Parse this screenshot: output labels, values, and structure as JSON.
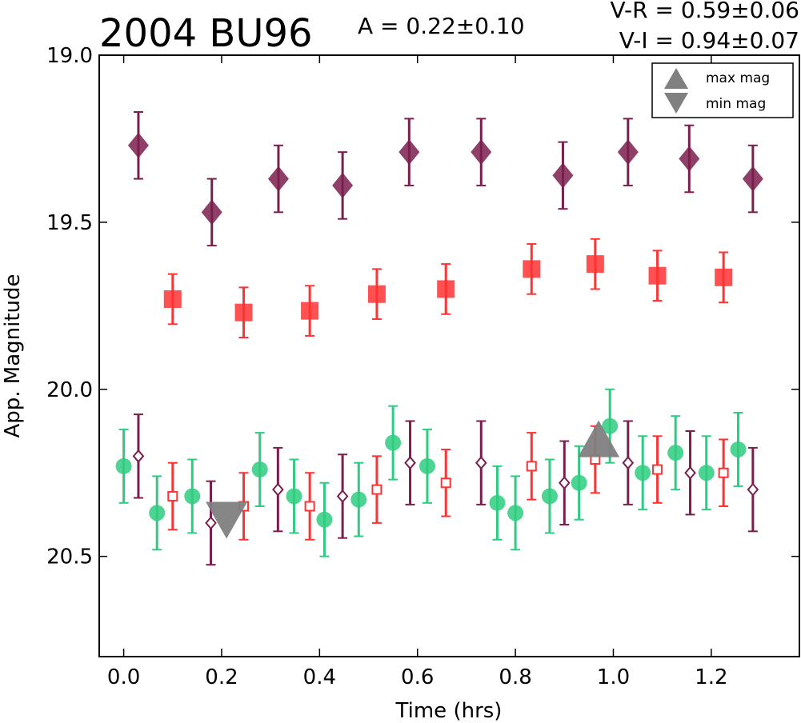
{
  "chart_data": {
    "type": "scatter",
    "title": "2004 BU96",
    "amplitude_text": "A  = 0.22±0.10",
    "color_lines": [
      "V-R = 0.59±0.06",
      "V-I  = 0.94±0.07"
    ],
    "xlabel": "Time (hrs)",
    "ylabel": "App. Magnitude",
    "xlim": [
      -0.05,
      1.38
    ],
    "ylim": [
      20.8,
      19.0
    ],
    "inverted_y": true,
    "x_ticks": [
      "0.0",
      "0.2",
      "0.4",
      "0.6",
      "0.8",
      "1.0",
      "1.2"
    ],
    "x_tick_values": [
      0.0,
      0.2,
      0.4,
      0.6,
      0.8,
      1.0,
      1.2
    ],
    "y_ticks": [
      "19.0",
      "19.5",
      "20.0",
      "20.5"
    ],
    "y_tick_values": [
      19.0,
      19.5,
      20.0,
      20.5
    ],
    "grid": false,
    "legend_position": "top-right",
    "legend": [
      {
        "label": "max mag",
        "marker": "triangle-up",
        "color": "#808080"
      },
      {
        "label": "min mag",
        "marker": "triangle-down",
        "color": "#808080"
      }
    ],
    "series": [
      {
        "marker": "diamond-filled",
        "color": "#7b1e4e",
        "x": [
          0.03,
          0.18,
          0.316,
          0.447,
          0.583,
          0.73,
          0.897,
          1.03,
          1.155,
          1.285
        ],
        "y": [
          19.27,
          19.47,
          19.37,
          19.39,
          19.29,
          19.29,
          19.36,
          19.29,
          19.31,
          19.37
        ],
        "yerr": 0.1
      },
      {
        "marker": "square-filled",
        "color": "#ff3333",
        "x": [
          0.1,
          0.245,
          0.38,
          0.517,
          0.658,
          0.833,
          0.963,
          1.09,
          1.225
        ],
        "y": [
          19.73,
          19.77,
          19.765,
          19.715,
          19.7,
          19.64,
          19.625,
          19.66,
          19.665
        ],
        "yerr": 0.075
      },
      {
        "marker": "circle-filled",
        "color": "#2ecc80",
        "x": [
          0.0,
          0.068,
          0.14,
          0.278,
          0.348,
          0.41,
          0.48,
          0.55,
          0.62,
          0.763,
          0.8,
          0.87,
          0.93,
          0.993,
          1.06,
          1.127,
          1.19,
          1.255
        ],
        "y": [
          20.23,
          20.37,
          20.32,
          20.24,
          20.32,
          20.39,
          20.33,
          20.16,
          20.23,
          20.34,
          20.37,
          20.32,
          20.28,
          20.11,
          20.25,
          20.19,
          20.25,
          20.18
        ],
        "yerr": 0.11
      },
      {
        "marker": "diamond-open",
        "color": "#7b1e4e",
        "x": [
          0.03,
          0.178,
          0.315,
          0.447,
          0.585,
          0.73,
          0.9,
          1.03,
          1.157,
          1.285
        ],
        "y": [
          20.2,
          20.4,
          20.3,
          20.32,
          20.22,
          20.22,
          20.28,
          20.22,
          20.25,
          20.3
        ],
        "yerr": 0.125
      },
      {
        "marker": "square-open",
        "color": "#ff3333",
        "x": [
          0.1,
          0.245,
          0.38,
          0.517,
          0.658,
          0.833,
          0.963,
          1.09,
          1.225
        ],
        "y": [
          20.32,
          20.35,
          20.35,
          20.3,
          20.28,
          20.23,
          20.21,
          20.24,
          20.25
        ],
        "yerr": 0.1
      }
    ],
    "extrema_markers": [
      {
        "label": "max mag",
        "marker": "triangle-up",
        "color": "#808080",
        "x": 0.97,
        "y": 20.16
      },
      {
        "label": "min mag",
        "marker": "triangle-down",
        "color": "#808080",
        "x": 0.21,
        "y": 20.38
      }
    ]
  }
}
